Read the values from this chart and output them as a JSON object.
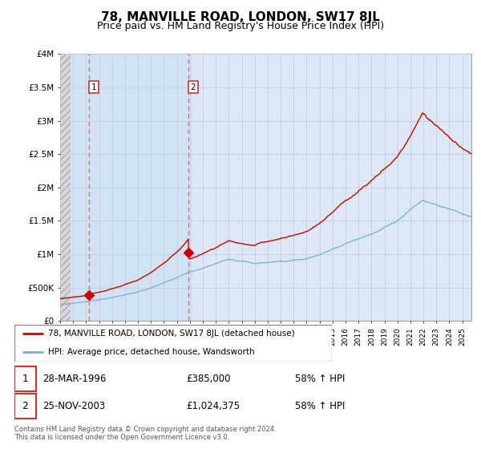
{
  "title": "78, MANVILLE ROAD, LONDON, SW17 8JL",
  "subtitle": "Price paid vs. HM Land Registry's House Price Index (HPI)",
  "title_fontsize": 11,
  "subtitle_fontsize": 9,
  "property_label": "78, MANVILLE ROAD, LONDON, SW17 8JL (detached house)",
  "hpi_label": "HPI: Average price, detached house, Wandsworth",
  "property_color": "#cc0000",
  "hpi_color": "#7aadcc",
  "annotation_color": "#cc4444",
  "grid_color": "#c0d0e0",
  "background_color": "#dce8f5",
  "hatch_end": 1994.83,
  "shaded_end": 2004.2,
  "footnote": "Contains HM Land Registry data © Crown copyright and database right 2024.\nThis data is licensed under the Open Government Licence v3.0.",
  "ylim": [
    0,
    4000000
  ],
  "yticks": [
    0,
    500000,
    1000000,
    1500000,
    2000000,
    2500000,
    3000000,
    3500000,
    4000000
  ],
  "ytick_labels": [
    "£0",
    "£500K",
    "£1M",
    "£1.5M",
    "£2M",
    "£2.5M",
    "£3M",
    "£3.5M",
    "£4M"
  ],
  "xlim_start": 1994.0,
  "xlim_end": 2025.7,
  "marker1_x": 1996.23,
  "marker1_y": 385000,
  "marker2_x": 2003.9,
  "marker2_y": 1024375,
  "transaction1_date": "28-MAR-1996",
  "transaction1_price": "£385,000",
  "transaction1_note": "58% ↑ HPI",
  "transaction2_date": "25-NOV-2003",
  "transaction2_price": "£1,024,375",
  "transaction2_note": "58% ↑ HPI"
}
